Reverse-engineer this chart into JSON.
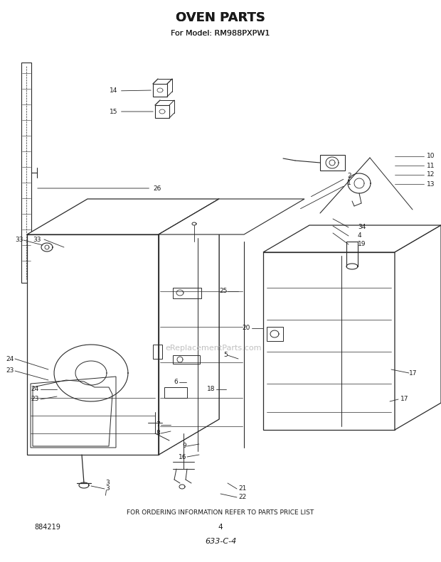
{
  "title": "OVEN PARTS",
  "subtitle": "For Model: RM988PXPW1",
  "footer_text": "FOR ORDERING INFORMATION REFER TO PARTS PRICE LIST",
  "page_number": "4",
  "doc_number": "884219",
  "doc_code": "633-C-4",
  "bg_color": "#ffffff",
  "line_color": "#2a2a2a",
  "text_color": "#1a1a1a",
  "watermark": "eReplacementParts.com"
}
